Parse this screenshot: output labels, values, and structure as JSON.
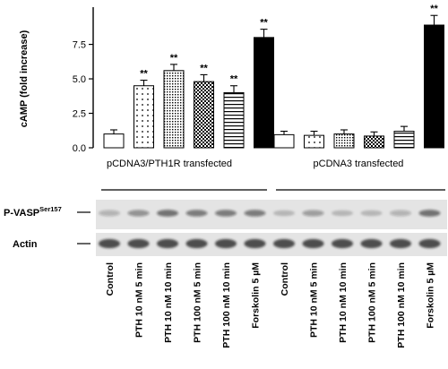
{
  "chart_data": {
    "type": "bar",
    "ylabel": "cAMP (fold increase)",
    "ylim": [
      0,
      10.2
    ],
    "yticks": [
      0.0,
      2.5,
      5.0,
      7.5
    ],
    "ytick_labels": [
      "0.0",
      "2.5",
      "5.0",
      "7.5"
    ],
    "grid": false,
    "groups": [
      {
        "label": "pCDNA3/PTH1R transfected",
        "bars": [
          {
            "category": "Control",
            "value": 1.0,
            "error": 0.3,
            "significance": "",
            "fill": "none"
          },
          {
            "category": "PTH 10 nM 5 min",
            "value": 4.5,
            "error": 0.4,
            "significance": "**",
            "fill": "dots"
          },
          {
            "category": "PTH 10 nM 10 min",
            "value": 5.6,
            "error": 0.45,
            "significance": "**",
            "fill": "dense-dots"
          },
          {
            "category": "PTH 100 nM 5 min",
            "value": 4.8,
            "error": 0.5,
            "significance": "**",
            "fill": "checker"
          },
          {
            "category": "PTH 100 nM 10 min",
            "value": 4.0,
            "error": 0.5,
            "significance": "**",
            "fill": "horizontal-lines"
          },
          {
            "category": "Forskolin 5 µM",
            "value": 8.0,
            "error": 0.6,
            "significance": "**",
            "fill": "solid-black"
          }
        ]
      },
      {
        "label": "pCDNA3 transfected",
        "bars": [
          {
            "category": "Control",
            "value": 0.95,
            "error": 0.25,
            "significance": "",
            "fill": "none"
          },
          {
            "category": "PTH 10 nM 5 min",
            "value": 0.9,
            "error": 0.3,
            "significance": "",
            "fill": "dots"
          },
          {
            "category": "PTH 10 nM 10 min",
            "value": 1.0,
            "error": 0.3,
            "significance": "",
            "fill": "dense-dots"
          },
          {
            "category": "PTH 100 nM 5 min",
            "value": 0.85,
            "error": 0.3,
            "significance": "",
            "fill": "checker"
          },
          {
            "category": "PTH 100 nM 10 min",
            "value": 1.2,
            "error": 0.35,
            "significance": "",
            "fill": "horizontal-lines"
          },
          {
            "category": "Forskolin 5 µM",
            "value": 8.9,
            "error": 0.7,
            "significance": "**",
            "fill": "solid-black"
          }
        ]
      }
    ]
  },
  "blot": {
    "bands": [
      {
        "name": "P-VASP",
        "superscript": "Ser157",
        "intensities": [
          0.25,
          0.4,
          0.55,
          0.5,
          0.5,
          0.5,
          0.2,
          0.35,
          0.2,
          0.2,
          0.25,
          0.55
        ]
      },
      {
        "name": "Actin",
        "superscript": "",
        "intensities": [
          0.75,
          0.75,
          0.75,
          0.75,
          0.75,
          0.75,
          0.75,
          0.75,
          0.75,
          0.75,
          0.75,
          0.75
        ]
      }
    ],
    "lane_labels": [
      "Control",
      "PTH 10 nM 5 min",
      "PTH 10 nM 10 min",
      "PTH 100 nM 5 min",
      "PTH 100 nM 10 min",
      "Forskolin 5 µM",
      "Control",
      "PTH 10 nM 5 min",
      "PTH 10 nM 10 min",
      "PTH 100 nM 5 min",
      "PTH 100 nM 10 min",
      "Forskolin 5 µM"
    ]
  },
  "colors": {
    "ink": "#000000",
    "membrane": "#e4e4e4",
    "band": "#1a1a1a"
  }
}
